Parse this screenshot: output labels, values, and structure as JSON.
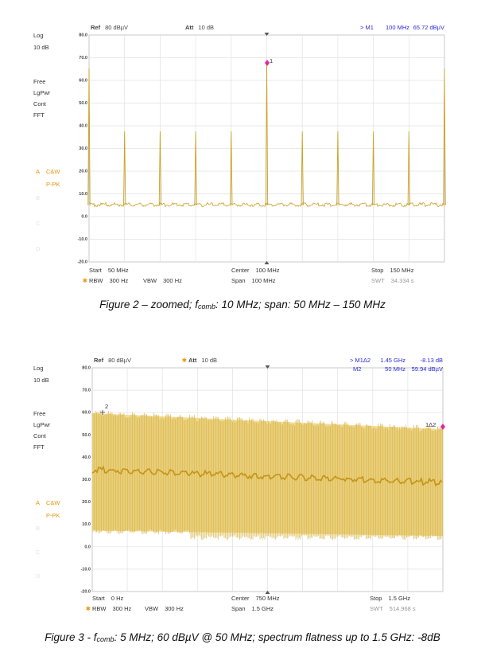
{
  "figures": [
    {
      "header": {
        "ref_label": "Ref",
        "ref_value": "80 dBµV",
        "att_label": "Att",
        "att_value": "10 dB",
        "marker_lines": [
          [
            "> M1",
            "100 MHz",
            "65.72 dBµV"
          ]
        ]
      },
      "side_labels": [
        "Log",
        "10 dB",
        "Free",
        "LgPwr",
        "Cont",
        "FFT"
      ],
      "trace": {
        "letter": "A",
        "name": "C&W",
        "detector": "P-PK"
      },
      "faded_traces": [
        "B",
        "C",
        "D"
      ],
      "y_tick_labels": [
        "80.0",
        "70.0",
        "60.0",
        "50.0",
        "40.0",
        "30.0",
        "20.0",
        "10.0",
        "0.0",
        "-10.0",
        "-20.0"
      ],
      "footer": {
        "start": [
          "Start",
          "50 MHz"
        ],
        "center": [
          "Center",
          "100 MHz"
        ],
        "stop": [
          "Stop",
          "150 MHz"
        ],
        "rbw": [
          "RBW",
          "300 Hz"
        ],
        "vbw": [
          "VBW",
          "300 Hz"
        ],
        "span": [
          "Span",
          "100 MHz"
        ],
        "swt": [
          "SWT",
          "34.334 s"
        ]
      },
      "markers": [
        "1"
      ],
      "caption": {
        "pre": "Figure 2 – zoomed; f",
        "sub": "comb",
        "post": ": 10 MHz; span: 50 MHz – 150 MHz"
      }
    },
    {
      "header": {
        "ref_label": "Ref",
        "ref_value": "80 dBµV",
        "att_label": "Att",
        "att_value": "10 dB",
        "marker_lines": [
          [
            "> M1Δ2",
            "1.45 GHz",
            "-8.13 dB"
          ],
          [
            "M2",
            "50 MHz",
            "59.94 dBµV"
          ]
        ]
      },
      "side_labels": [
        "Log",
        "10 dB",
        "Free",
        "LgPwr",
        "Cont",
        "FFT"
      ],
      "trace": {
        "letter": "A",
        "name": "C&W",
        "detector": "P-PK"
      },
      "faded_traces": [
        "B",
        "C",
        "D"
      ],
      "y_tick_labels": [
        "80.0",
        "70.0",
        "60.0",
        "50.0",
        "40.0",
        "30.0",
        "20.0",
        "10.0",
        "0.0",
        "-10.0",
        "-20.0"
      ],
      "footer": {
        "start": [
          "Start",
          "0 Hz"
        ],
        "center": [
          "Center",
          "750 MHz"
        ],
        "stop": [
          "Stop",
          "1.5 GHz"
        ],
        "rbw": [
          "RBW",
          "300 Hz"
        ],
        "vbw": [
          "VBW",
          "300 Hz"
        ],
        "span": [
          "Span",
          "1.5 GHz"
        ],
        "swt": [
          "SWT",
          "514.968 s"
        ]
      },
      "markers": [
        "2",
        "1Δ2"
      ],
      "caption": {
        "pre": "Figure 3 - f",
        "sub": "comb",
        "post": ": 5 MHz; 60 dBµV @ 50 MHz; spectrum flatness up to 1.5 GHz: -8dB"
      }
    }
  ]
}
